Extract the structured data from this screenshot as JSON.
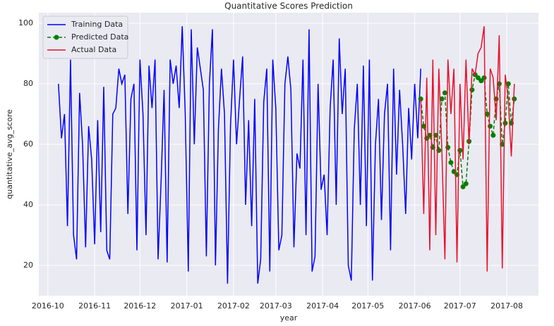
{
  "chart_data": {
    "type": "line",
    "title": "Quantitative Scores Prediction",
    "x_label": "year",
    "y_label": "quantitative_avg_score",
    "xlim": [
      -6,
      325
    ],
    "ylim": [
      10,
      103.5
    ],
    "xticks": [
      {
        "value": 0,
        "label": "2016-10"
      },
      {
        "value": 31,
        "label": "2016-11"
      },
      {
        "value": 61,
        "label": "2016-12"
      },
      {
        "value": 92,
        "label": "2017-01"
      },
      {
        "value": 123,
        "label": "2017-02"
      },
      {
        "value": 151,
        "label": "2017-03"
      },
      {
        "value": 182,
        "label": "2017-04"
      },
      {
        "value": 212,
        "label": "2017-05"
      },
      {
        "value": 243,
        "label": "2017-06"
      },
      {
        "value": 273,
        "label": "2017-07"
      },
      {
        "value": 304,
        "label": "2017-08"
      }
    ],
    "yticks": [
      20,
      40,
      60,
      80,
      100
    ],
    "grid": true,
    "legend": "upper left",
    "series": [
      {
        "name": "Training Data",
        "color": "#0000ff",
        "x": [
          7,
          9,
          11,
          13,
          15,
          17,
          19,
          21,
          23,
          25,
          27,
          29,
          31,
          33,
          35,
          37,
          39,
          41,
          43,
          45,
          47,
          49,
          51,
          53,
          55,
          57,
          59,
          61,
          63,
          65,
          67,
          69,
          71,
          73,
          75,
          77,
          79,
          81,
          83,
          85,
          87,
          89,
          91,
          93,
          95,
          97,
          99,
          101,
          103,
          105,
          107,
          109,
          111,
          113,
          115,
          117,
          119,
          121,
          123,
          125,
          127,
          129,
          131,
          133,
          135,
          137,
          139,
          141,
          143,
          145,
          147,
          149,
          151,
          153,
          155,
          157,
          159,
          161,
          163,
          165,
          167,
          169,
          171,
          173,
          175,
          177,
          179,
          181,
          183,
          185,
          187,
          189,
          191,
          193,
          195,
          197,
          199,
          201,
          203,
          205,
          207,
          209,
          211,
          213,
          215,
          217,
          219,
          221,
          223,
          225,
          227,
          229,
          231,
          233,
          235,
          237,
          239,
          241,
          243,
          245,
          247
        ],
        "values": [
          80,
          62,
          70,
          33,
          88,
          30,
          22,
          77,
          60,
          26,
          66,
          55,
          27,
          68,
          31,
          79,
          25,
          22,
          70,
          72,
          85,
          80,
          83,
          37,
          75,
          80,
          25,
          88,
          70,
          30,
          86,
          72,
          88,
          22,
          48,
          78,
          21,
          88,
          80,
          86,
          72,
          99,
          70,
          18,
          98,
          60,
          92,
          85,
          78,
          23,
          80,
          98,
          20,
          65,
          85,
          70,
          14,
          66,
          88,
          60,
          75,
          89,
          40,
          68,
          33,
          75,
          14,
          22,
          74,
          85,
          18,
          88,
          72,
          25,
          30,
          80,
          89,
          78,
          26,
          57,
          52,
          88,
          30,
          98,
          18,
          23,
          80,
          45,
          50,
          30,
          72,
          88,
          40,
          95,
          70,
          85,
          20,
          15,
          65,
          80,
          40,
          86,
          33,
          88,
          15,
          60,
          75,
          35,
          70,
          80,
          25,
          85,
          50,
          78,
          60,
          37,
          72,
          55,
          80,
          62,
          85
        ]
      },
      {
        "name": "Predicted Data",
        "color": "#008000",
        "linestyle": "--",
        "marker": "o",
        "x": [
          247,
          249,
          251,
          253,
          255,
          257,
          259,
          261,
          263,
          265,
          267,
          269,
          271,
          273,
          275,
          277,
          279,
          281,
          283,
          285,
          287,
          289,
          291,
          293,
          295,
          297,
          299,
          301,
          303,
          305,
          307,
          309
        ],
        "values": [
          75,
          66,
          62,
          63,
          59,
          63,
          58,
          75,
          77,
          59,
          54,
          51,
          50,
          58,
          46,
          47,
          61,
          78,
          83,
          82,
          81,
          82,
          70,
          66,
          63,
          75,
          80,
          60,
          67,
          80,
          67,
          75
        ]
      },
      {
        "name": "Actual Data",
        "color": "#e8112d",
        "x": [
          247,
          249,
          251,
          253,
          255,
          257,
          259,
          261,
          263,
          265,
          267,
          269,
          271,
          273,
          275,
          277,
          279,
          281,
          283,
          285,
          287,
          289,
          291,
          293,
          295,
          297,
          299,
          301,
          303,
          305,
          307,
          309
        ],
        "values": [
          75,
          37,
          82,
          25,
          88,
          30,
          85,
          58,
          22,
          88,
          70,
          85,
          21,
          80,
          55,
          88,
          60,
          85,
          83,
          90,
          92,
          99,
          18,
          85,
          82,
          68,
          96,
          19,
          83,
          75,
          56,
          80
        ]
      }
    ]
  }
}
